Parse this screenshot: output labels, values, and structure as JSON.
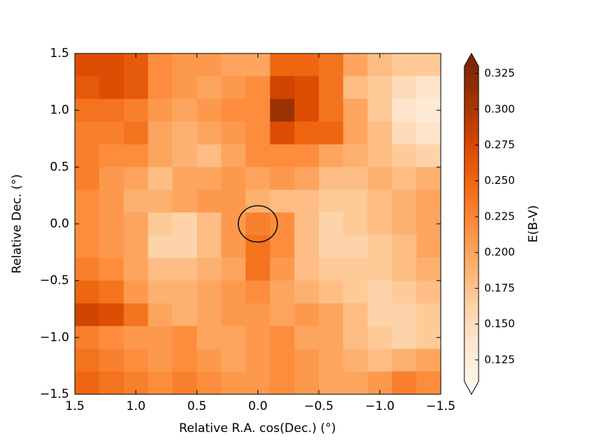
{
  "chart_data": {
    "type": "heatmap",
    "xlabel": "Relative R.A. cos(Dec.) (°)",
    "ylabel": "Relative Dec. (°)",
    "colorbar_label": "E(B-V)",
    "xlim": [
      1.5,
      -1.5
    ],
    "ylim": [
      -1.5,
      1.5
    ],
    "xticks": [
      1.5,
      {
        "value": 1,
        "label": "1.0"
      },
      0.5,
      {
        "value": 0,
        "label": "0.0"
      },
      {
        "value": -0.5,
        "label": "−0.5"
      },
      {
        "value": -1,
        "label": "−1.0"
      },
      {
        "value": -1.5,
        "label": "−1.5"
      }
    ],
    "yticks": [
      {
        "value": -1.5,
        "label": "−1.5"
      },
      {
        "value": -1,
        "label": "−1.0"
      },
      {
        "value": -0.5,
        "label": "−0.5"
      },
      {
        "value": 0,
        "label": "0.0"
      },
      0.5,
      {
        "value": 1,
        "label": "1.0"
      },
      1.5
    ],
    "clim": [
      0.11,
      0.33
    ],
    "cticks": [
      0.125,
      {
        "value": 0.15,
        "label": "0.150"
      },
      0.175,
      {
        "value": 0.2,
        "label": "0.200"
      },
      0.225,
      {
        "value": 0.25,
        "label": "0.250"
      },
      0.275,
      {
        "value": 0.3,
        "label": "0.300"
      },
      0.325
    ],
    "colormap": [
      "#fff5eb",
      "#fee6ce",
      "#fdd0a2",
      "#fdae6b",
      "#fd8d3c",
      "#f16913",
      "#d94801",
      "#a63603",
      "#7f2704"
    ],
    "origin": "upper",
    "z": [
      [
        0.27,
        0.27,
        0.26,
        0.22,
        0.21,
        0.21,
        0.2,
        0.2,
        0.25,
        0.25,
        0.24,
        0.2,
        0.18,
        0.17,
        0.17
      ],
      [
        0.26,
        0.27,
        0.26,
        0.22,
        0.21,
        0.2,
        0.21,
        0.22,
        0.28,
        0.27,
        0.24,
        0.18,
        0.17,
        0.15,
        0.14
      ],
      [
        0.24,
        0.24,
        0.23,
        0.21,
        0.2,
        0.21,
        0.22,
        0.22,
        0.31,
        0.27,
        0.24,
        0.2,
        0.17,
        0.14,
        0.13
      ],
      [
        0.23,
        0.23,
        0.24,
        0.2,
        0.19,
        0.2,
        0.21,
        0.22,
        0.27,
        0.25,
        0.25,
        0.2,
        0.18,
        0.15,
        0.14
      ],
      [
        0.23,
        0.22,
        0.22,
        0.2,
        0.19,
        0.18,
        0.2,
        0.22,
        0.22,
        0.22,
        0.2,
        0.19,
        0.18,
        0.17,
        0.16
      ],
      [
        0.23,
        0.21,
        0.2,
        0.18,
        0.2,
        0.2,
        0.21,
        0.2,
        0.21,
        0.2,
        0.18,
        0.18,
        0.19,
        0.18,
        0.19
      ],
      [
        0.22,
        0.21,
        0.19,
        0.19,
        0.2,
        0.21,
        0.21,
        0.19,
        0.18,
        0.18,
        0.17,
        0.17,
        0.18,
        0.19,
        0.2
      ],
      [
        0.22,
        0.21,
        0.2,
        0.17,
        0.16,
        0.18,
        0.21,
        0.23,
        0.22,
        0.18,
        0.16,
        0.17,
        0.18,
        0.19,
        0.2
      ],
      [
        0.22,
        0.21,
        0.2,
        0.16,
        0.16,
        0.18,
        0.21,
        0.24,
        0.22,
        0.18,
        0.16,
        0.16,
        0.17,
        0.18,
        0.2
      ],
      [
        0.23,
        0.22,
        0.2,
        0.18,
        0.18,
        0.19,
        0.2,
        0.24,
        0.21,
        0.18,
        0.17,
        0.17,
        0.17,
        0.18,
        0.19
      ],
      [
        0.25,
        0.24,
        0.21,
        0.19,
        0.19,
        0.2,
        0.21,
        0.22,
        0.2,
        0.19,
        0.18,
        0.17,
        0.16,
        0.17,
        0.18
      ],
      [
        0.28,
        0.27,
        0.24,
        0.2,
        0.19,
        0.2,
        0.21,
        0.21,
        0.2,
        0.21,
        0.2,
        0.18,
        0.16,
        0.16,
        0.17
      ],
      [
        0.23,
        0.22,
        0.21,
        0.21,
        0.22,
        0.2,
        0.2,
        0.21,
        0.22,
        0.2,
        0.2,
        0.18,
        0.17,
        0.16,
        0.17
      ],
      [
        0.24,
        0.23,
        0.22,
        0.21,
        0.22,
        0.21,
        0.2,
        0.21,
        0.22,
        0.21,
        0.2,
        0.19,
        0.18,
        0.19,
        0.2
      ],
      [
        0.25,
        0.24,
        0.23,
        0.22,
        0.23,
        0.22,
        0.21,
        0.21,
        0.22,
        0.21,
        0.2,
        0.2,
        0.21,
        0.23,
        0.22
      ]
    ],
    "circle": {
      "x": 0,
      "y": 0,
      "radius": 0.16
    }
  }
}
